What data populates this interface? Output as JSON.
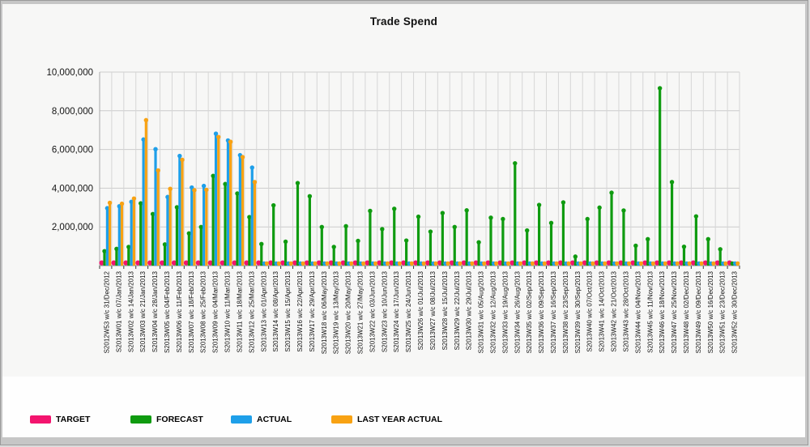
{
  "chart_data": {
    "type": "bar",
    "title": "Trade Spend",
    "xlabel": "",
    "ylabel": "",
    "ylim": [
      0,
      10000000
    ],
    "y_ticks": [
      2000000,
      4000000,
      6000000,
      8000000,
      10000000
    ],
    "y_tick_labels": [
      "2,000,000",
      "4,000,000",
      "6,000,000",
      "8,000,000",
      "10,000,000"
    ],
    "grid": true,
    "legend_position": "bottom",
    "categories": [
      "S2012W53 w/c 31/Dec/2012",
      "S2013W01 w/c 07/Jan/2013",
      "S2013W02 w/c 14/Jan/2013",
      "S2013W03 w/c 21/Jan/2013",
      "S2013W04 w/c 28/Jan/2013",
      "S2013W05 w/c 04/Feb/2013",
      "S2013W06 w/c 11/Feb/2013",
      "S2013W07 w/c 18/Feb/2013",
      "S2013W08 w/c 25/Feb/2013",
      "S2013W09 w/c 04/Mar/2013",
      "S2013W10 w/c 11/Mar/2013",
      "S2013W11 w/c 18/Mar/2013",
      "S2013W12 w/c 25/Mar/2013",
      "S2013W13 w/c 01/Apr/2013",
      "S2013W14 w/c 08/Apr/2013",
      "S2013W15 w/c 15/Apr/2013",
      "S2013W16 w/c 22/Apr/2013",
      "S2013W17 w/c 29/Apr/2013",
      "S2013W18 w/c 06/May/2013",
      "S2013W19 w/c 13/May/2013",
      "S2013W20 w/c 20/May/2013",
      "S2013W21 w/c 27/May/2013",
      "S2013W22 w/c 03/Jun/2013",
      "S2013W23 w/c 10/Jun/2013",
      "S2013W24 w/c 17/Jun/2013",
      "S2013W25 w/c 24/Jun/2013",
      "S2013W26 w/c 01/Jul/2013",
      "S2013W27 w/c 08/Jul/2013",
      "S2013W28 w/c 15/Jul/2013",
      "S2013W29 w/c 22/Jul/2013",
      "S2013W30 w/c 29/Jul/2013",
      "S2013W31 w/c 05/Aug/2013",
      "S2013W32 w/c 12/Aug/2013",
      "S2013W33 w/c 19/Aug/2013",
      "S2013W34 w/c 26/Aug/2013",
      "S2013W35 w/c 02/Sep/2013",
      "S2013W36 w/c 09/Sep/2013",
      "S2013W37 w/c 16/Sep/2013",
      "S2013W38 w/c 23/Sep/2013",
      "S2013W39 w/c 30/Sep/2013",
      "S2013W40 w/c 07/Oct/2013",
      "S2013W41 w/c 14/Oct/2013",
      "S2013W42 w/c 21/Oct/2013",
      "S2013W43 w/c 28/Oct/2013",
      "S2013W44 w/c 04/Nov/2013",
      "S2013W45 w/c 11/Nov/2013",
      "S2013W46 w/c 18/Nov/2013",
      "S2013W47 w/c 25/Nov/2013",
      "S2013W48 w/c 02/Dec/2013",
      "S2013W49 w/c 09/Dec/2013",
      "S2013W50 w/c 16/Dec/2013",
      "S2013W51 w/c 23/Dec/2013",
      "S2013W52 w/c 30/Dec/2013"
    ],
    "series": [
      {
        "name": "TARGET",
        "color": "#f3146e",
        "values": [
          50000,
          50000,
          50000,
          50000,
          50000,
          50000,
          50000,
          50000,
          50000,
          50000,
          50000,
          50000,
          50000,
          50000,
          50000,
          50000,
          50000,
          50000,
          50000,
          50000,
          50000,
          50000,
          50000,
          50000,
          50000,
          50000,
          50000,
          50000,
          50000,
          50000,
          50000,
          50000,
          50000,
          50000,
          50000,
          50000,
          50000,
          50000,
          50000,
          50000,
          50000,
          50000,
          50000,
          50000,
          50000,
          50000,
          50000,
          50000,
          50000,
          50000,
          50000,
          50000,
          50000
        ]
      },
      {
        "name": "FORECAST",
        "color": "#0f9b10",
        "values": [
          780000,
          900000,
          1000000,
          3250000,
          2700000,
          1130000,
          3050000,
          1700000,
          2030000,
          4670000,
          4250000,
          3760000,
          2540000,
          1150000,
          3150000,
          1270000,
          4300000,
          3620000,
          2030000,
          1000000,
          2070000,
          1310000,
          2860000,
          1920000,
          2970000,
          1330000,
          2560000,
          1790000,
          2750000,
          2030000,
          2890000,
          1240000,
          2510000,
          2440000,
          5320000,
          1850000,
          3170000,
          2240000,
          3300000,
          500000,
          2440000,
          3030000,
          3800000,
          2880000,
          1060000,
          1400000,
          9200000,
          4350000,
          1010000,
          2580000,
          1400000,
          880000,
          100000
        ]
      },
      {
        "name": "ACTUAL",
        "color": "#1e9fe9",
        "values": [
          3000000,
          3100000,
          3330000,
          6550000,
          6050000,
          3580000,
          5700000,
          4070000,
          4150000,
          6850000,
          6500000,
          5740000,
          5100000,
          60000,
          60000,
          60000,
          60000,
          60000,
          60000,
          60000,
          60000,
          60000,
          60000,
          60000,
          60000,
          60000,
          60000,
          60000,
          60000,
          60000,
          60000,
          60000,
          60000,
          60000,
          60000,
          60000,
          60000,
          60000,
          60000,
          60000,
          60000,
          60000,
          60000,
          60000,
          60000,
          60000,
          60000,
          60000,
          60000,
          60000,
          60000,
          60000,
          60000
        ]
      },
      {
        "name": "LAST YEAR ACTUAL",
        "color": "#f8a213",
        "values": [
          3280000,
          3230000,
          3500000,
          7550000,
          4950000,
          4000000,
          5500000,
          3930000,
          3950000,
          6680000,
          6430000,
          5640000,
          4350000,
          100000,
          80000,
          80000,
          80000,
          80000,
          80000,
          80000,
          80000,
          80000,
          80000,
          80000,
          80000,
          80000,
          80000,
          80000,
          80000,
          80000,
          80000,
          80000,
          80000,
          80000,
          80000,
          80000,
          80000,
          80000,
          80000,
          80000,
          80000,
          80000,
          80000,
          80000,
          80000,
          80000,
          80000,
          80000,
          80000,
          80000,
          80000,
          80000,
          80000
        ]
      }
    ]
  }
}
